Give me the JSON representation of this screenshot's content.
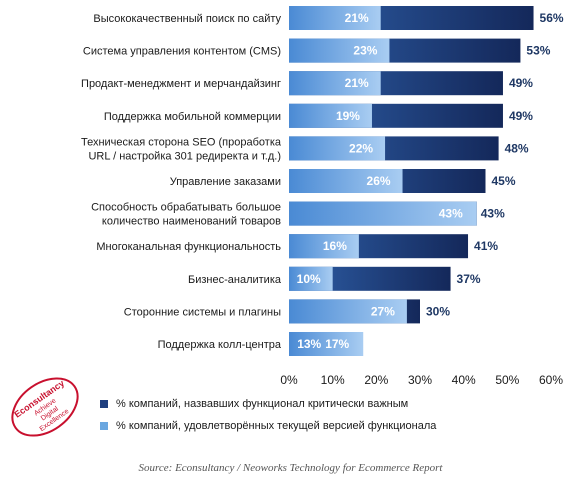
{
  "chart_data": {
    "type": "bar",
    "orientation": "horizontal",
    "stacking": "overlay",
    "categories": [
      [
        "Высококачественный поиск по сайту"
      ],
      [
        "Система управления контентом (CMS)"
      ],
      [
        "Продакт-менеджмент и мерчандайзинг"
      ],
      [
        "Поддержка мобильной коммерции"
      ],
      [
        "Техническая сторона SEO (проработка",
        "URL / настройка 301 редиректа и т.д.)"
      ],
      [
        "Управление заказами"
      ],
      [
        "Способность обрабатывать большое",
        "количество наименований товаров"
      ],
      [
        "Многоканальная функциональность"
      ],
      [
        "Бизнес-аналитика"
      ],
      [
        "Сторонние системы и плагины"
      ],
      [
        "Поддержка колл-центра"
      ]
    ],
    "series": [
      {
        "name": "% компаний, назвавших функционал критически важным",
        "values": [
          56,
          53,
          49,
          49,
          48,
          45,
          43,
          41,
          37,
          30,
          13
        ],
        "labels": [
          "56%",
          "53%",
          "49%",
          "49%",
          "48%",
          "45%",
          "43%",
          "41%",
          "37%",
          "30%",
          "13%"
        ],
        "color": "#1f3f7f"
      },
      {
        "name": "% компаний, удовлетворённых текущей версией функционала",
        "values": [
          21,
          23,
          21,
          19,
          22,
          26,
          43,
          16,
          10,
          27,
          17
        ],
        "labels": [
          "21%",
          "23%",
          "21%",
          "19%",
          "22%",
          "26%",
          "43%",
          "16%",
          "10%",
          "27%",
          "17%"
        ],
        "color": "#5b9bd5"
      }
    ],
    "xlim": [
      0,
      60
    ],
    "xticks": [
      "0%",
      "10%",
      "20%",
      "30%",
      "40%",
      "50%",
      "60%"
    ],
    "grid": false,
    "legend": "bottom"
  },
  "source": "Source: Econsultancy / Neoworks Technology for Ecommerce Report",
  "logo_text": [
    "Econsultancy",
    "Achieve",
    "Digital",
    "Excellence"
  ],
  "colors": {
    "dark_start": "#2e5fa8",
    "dark_end": "#14285a",
    "light_start": "#4a8ad4",
    "light_end": "#a9cdf2",
    "label_dark": "#1f3864",
    "brand_red": "#c8102e"
  }
}
